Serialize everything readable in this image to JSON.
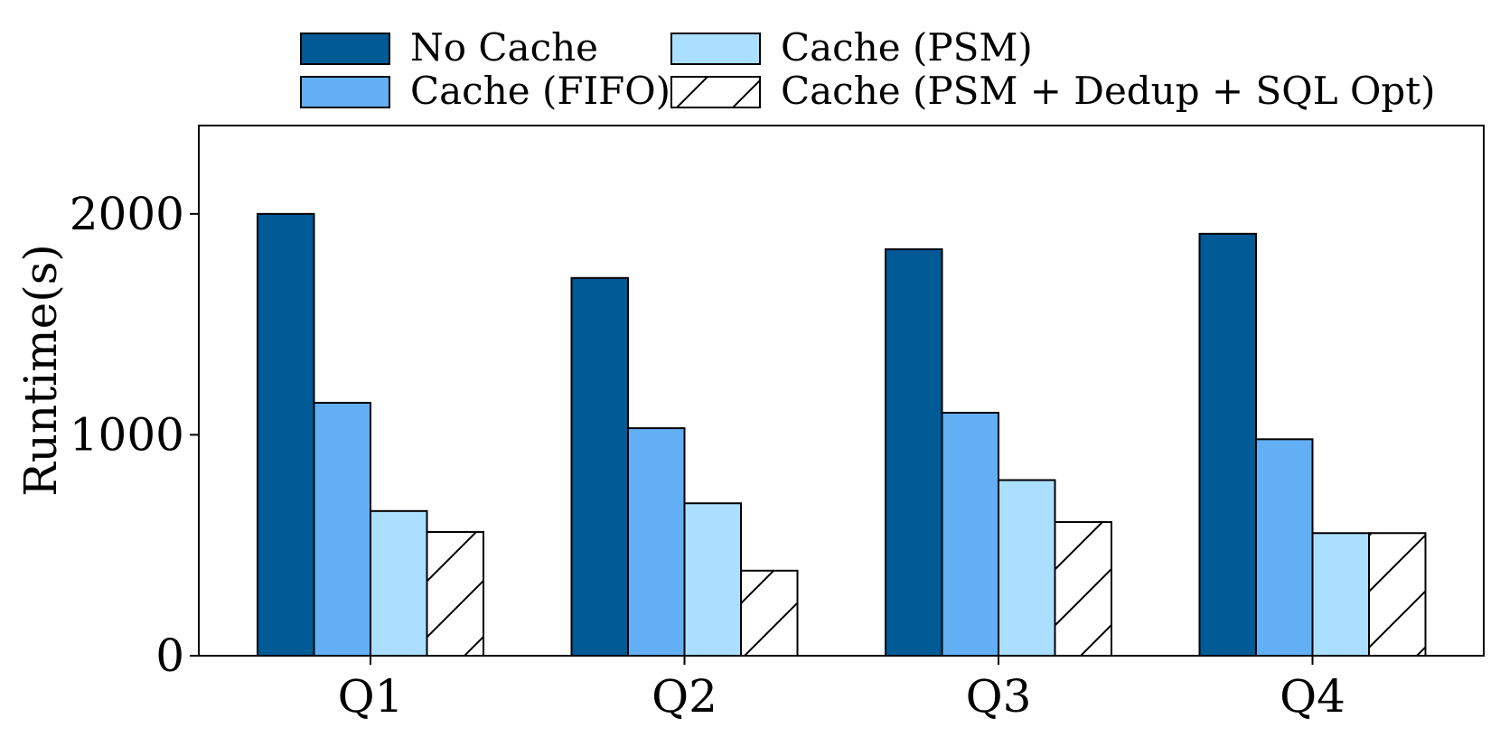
{
  "chart_data": {
    "type": "bar",
    "categories": [
      "Q1",
      "Q2",
      "Q3",
      "Q4"
    ],
    "series": [
      {
        "name": "No Cache",
        "color": "#005a96",
        "hatch": false,
        "values": [
          2000,
          1710,
          1840,
          1910
        ]
      },
      {
        "name": "Cache (FIFO)",
        "color": "#63aff5",
        "hatch": false,
        "values": [
          1145,
          1030,
          1100,
          980
        ]
      },
      {
        "name": "Cache (PSM)",
        "color": "#aadfff",
        "hatch": false,
        "values": [
          655,
          690,
          795,
          555
        ]
      },
      {
        "name": "Cache (PSM + Dedup + SQL Opt)",
        "color": "#ffffff",
        "hatch": true,
        "values": [
          560,
          385,
          605,
          555
        ]
      }
    ],
    "ylabel": "Runtime(s)",
    "xlabel": "",
    "ylim": [
      0,
      2400
    ],
    "yticks": [
      0,
      1000,
      2000
    ],
    "grid": false,
    "legend": "top"
  }
}
